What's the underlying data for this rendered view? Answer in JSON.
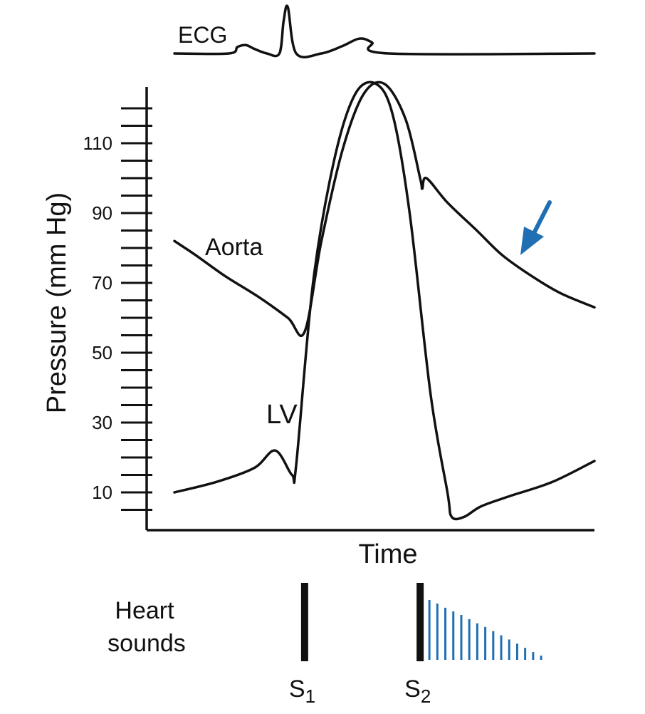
{
  "chart_data": {
    "type": "line",
    "title": "",
    "xlabel": "Time",
    "ylabel": "Pressure (mm Hg)",
    "ylim": [
      0,
      128
    ],
    "y_ticks": [
      10,
      30,
      50,
      70,
      90,
      110
    ],
    "grid": false,
    "legend": "none",
    "series": [
      {
        "name": "Aorta",
        "x": [
          0.0,
          0.05,
          0.12,
          0.2,
          0.27,
          0.31,
          0.35,
          0.4,
          0.45,
          0.5,
          0.55,
          0.585,
          0.59,
          0.6,
          0.65,
          0.72,
          0.78,
          0.85,
          0.92,
          1.0
        ],
        "y": [
          82,
          78,
          72,
          66,
          60,
          56,
          82,
          108,
          124,
          127,
          117,
          100,
          97,
          100,
          93,
          85,
          78,
          72,
          67,
          63
        ]
      },
      {
        "name": "LV",
        "x": [
          0.0,
          0.1,
          0.19,
          0.24,
          0.28,
          0.29,
          0.33,
          0.38,
          0.43,
          0.48,
          0.52,
          0.56,
          0.61,
          0.65,
          0.66,
          0.69,
          0.73,
          0.8,
          0.9,
          1.0
        ],
        "y": [
          10,
          13,
          17,
          22,
          15,
          18,
          70,
          105,
          124,
          127,
          118,
          90,
          38,
          10,
          3,
          3,
          6,
          9,
          13,
          19
        ]
      },
      {
        "name": "ECG",
        "x": [
          0.0,
          0.13,
          0.15,
          0.17,
          0.19,
          0.22,
          0.25,
          0.26,
          0.27,
          0.29,
          0.35,
          0.4,
          0.44,
          0.47,
          0.51,
          1.0
        ],
        "y": [
          0,
          0,
          0.7,
          0.9,
          0.5,
          0,
          0,
          3.5,
          5.0,
          0,
          0,
          0.8,
          1.6,
          1.2,
          0,
          0
        ]
      }
    ],
    "annotations": [
      {
        "label": "ECG"
      },
      {
        "label": "Aorta"
      },
      {
        "label": "LV"
      },
      {
        "label": "",
        "kind": "arrow",
        "color": "#1f6fb2",
        "target": "Aorta diastolic runoff"
      }
    ],
    "heart_sounds": {
      "label_line1": "Heart",
      "label_line2": "sounds",
      "s1": {
        "label": "S",
        "sub": "1",
        "x": 0.31
      },
      "s2": {
        "label": "S",
        "sub": "2",
        "x": 0.585
      },
      "murmur": {
        "color": "#1f6fb2",
        "x": [
          0.607,
          0.626,
          0.645,
          0.664,
          0.683,
          0.702,
          0.721,
          0.74,
          0.759,
          0.778,
          0.797,
          0.816,
          0.835,
          0.854,
          0.873
        ],
        "intensity": [
          1.0,
          0.94,
          0.87,
          0.81,
          0.75,
          0.68,
          0.61,
          0.55,
          0.48,
          0.41,
          0.34,
          0.27,
          0.2,
          0.13,
          0.07
        ]
      }
    },
    "colors": {
      "line": "#111111",
      "accent": "#1f6fb2"
    }
  }
}
